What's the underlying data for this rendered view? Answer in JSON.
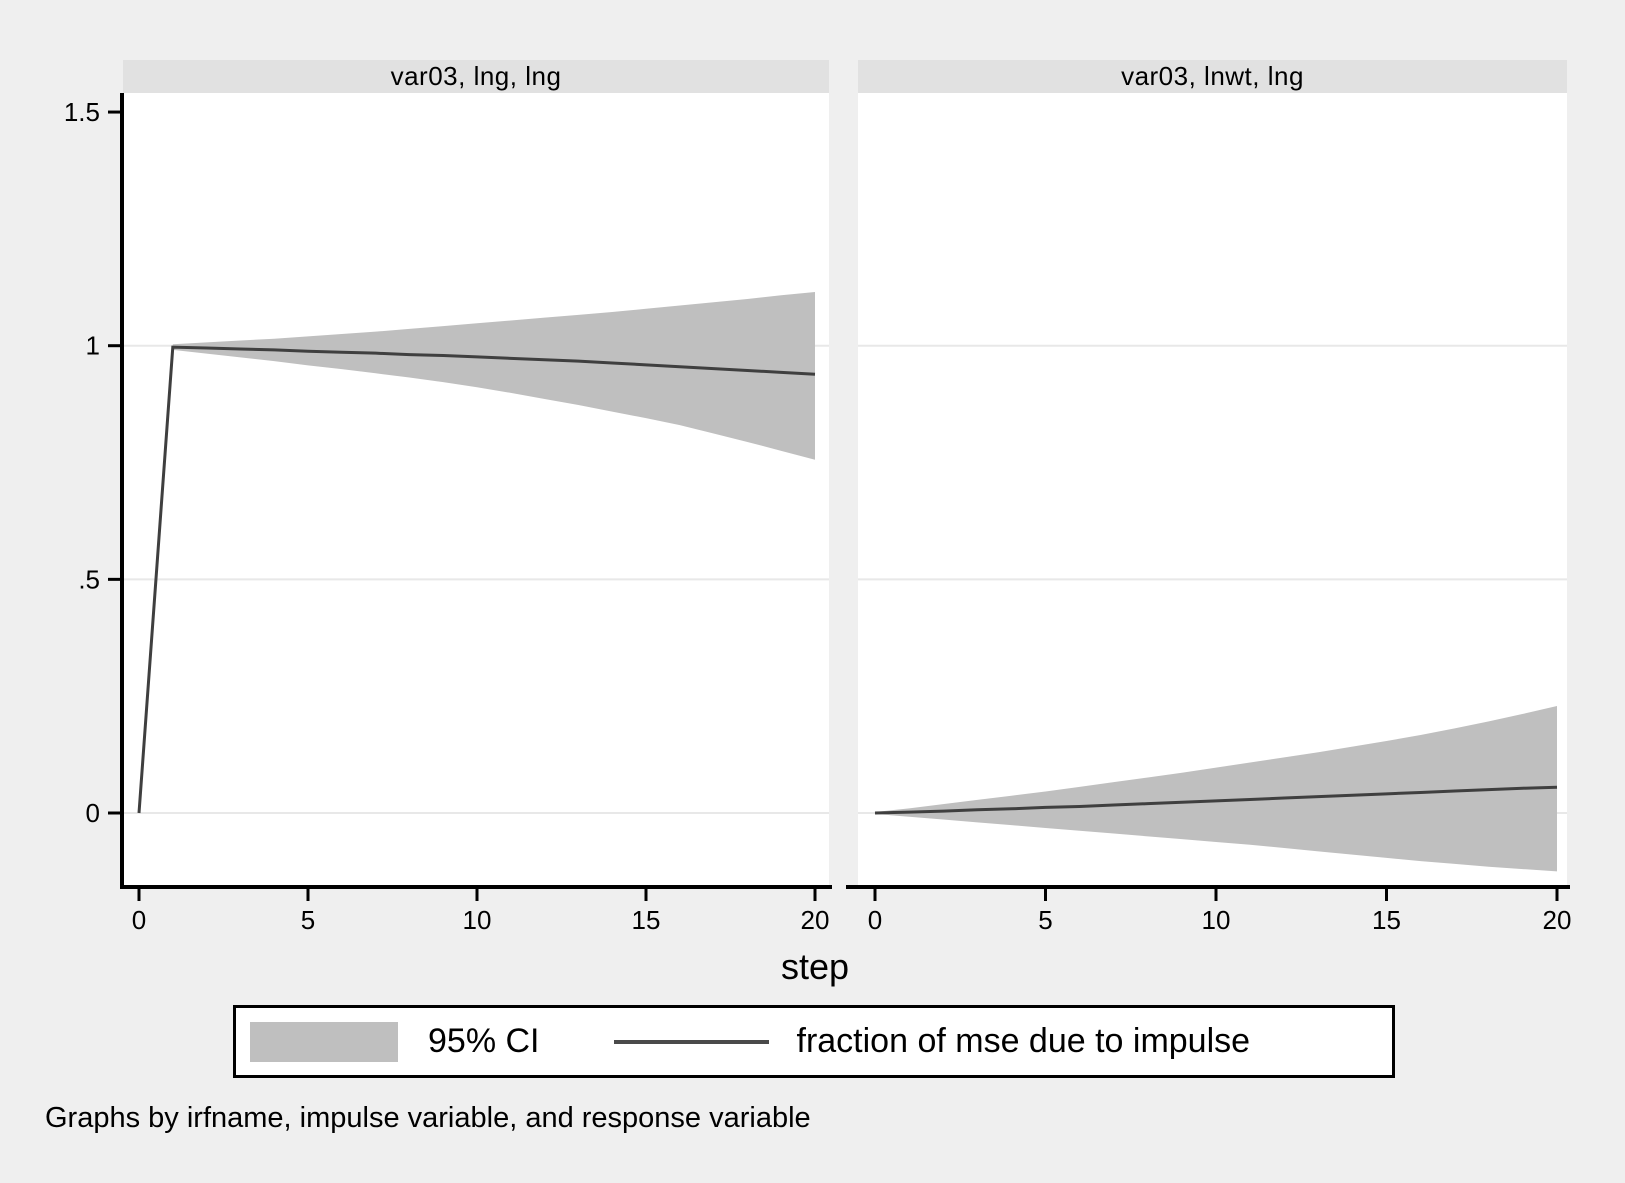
{
  "figure": {
    "panels": [
      {
        "title": "var03, lng, lng"
      },
      {
        "title": "var03, lnwt, lng"
      }
    ],
    "xlabel": "step",
    "legend": {
      "ci_label": "95% CI",
      "line_label": "fraction of mse due to impulse"
    },
    "note": "Graphs by irfname, impulse variable, and response variable"
  },
  "colors": {
    "background": "#efefef",
    "strip_background": "#e1e1e1",
    "plot_background": "#ffffff",
    "gridline": "#e8e8e8",
    "ci_band": "#bfbfbf",
    "line": "#3f3f3f",
    "axis": "#000000",
    "text": "#000000"
  },
  "chart_data": [
    {
      "type": "area",
      "title": "var03, lng, lng",
      "xlabel": "step",
      "x_ticks": [
        0,
        5,
        10,
        15,
        20
      ],
      "x_tick_labels": [
        "0",
        "5",
        "10",
        "15",
        "20"
      ],
      "y_ticks": [
        0,
        0.5,
        1,
        1.5
      ],
      "y_tick_labels": [
        "0",
        ".5",
        "1",
        "1.5"
      ],
      "gridlines": [
        0,
        0.5,
        1
      ],
      "xlim": [
        0,
        20
      ],
      "ylim": [
        -0.16,
        1.54
      ],
      "series": [
        {
          "name": "fraction of mse due to impulse",
          "kind": "line",
          "x": [
            0,
            1,
            2,
            3,
            4,
            5,
            6,
            7,
            8,
            9,
            10,
            11,
            12,
            13,
            14,
            15,
            16,
            17,
            18,
            19,
            20
          ],
          "y": [
            0,
            0.997,
            0.995,
            0.993,
            0.991,
            0.988,
            0.986,
            0.984,
            0.981,
            0.979,
            0.976,
            0.973,
            0.97,
            0.967,
            0.963,
            0.959,
            0.955,
            0.951,
            0.947,
            0.943,
            0.939
          ]
        },
        {
          "name": "95% CI",
          "kind": "band",
          "x": [
            1,
            2,
            3,
            4,
            5,
            6,
            7,
            8,
            9,
            10,
            11,
            12,
            13,
            14,
            15,
            16,
            17,
            18,
            19,
            20
          ],
          "upper": [
            1.003,
            1.007,
            1.011,
            1.015,
            1.02,
            1.025,
            1.03,
            1.036,
            1.042,
            1.048,
            1.054,
            1.06,
            1.066,
            1.072,
            1.079,
            1.086,
            1.093,
            1.1,
            1.108,
            1.115
          ],
          "lower": [
            0.991,
            0.983,
            0.975,
            0.967,
            0.958,
            0.95,
            0.941,
            0.932,
            0.922,
            0.911,
            0.899,
            0.886,
            0.873,
            0.859,
            0.845,
            0.83,
            0.812,
            0.794,
            0.775,
            0.756
          ]
        }
      ]
    },
    {
      "type": "area",
      "title": "var03, lnwt, lng",
      "xlabel": "step",
      "x_ticks": [
        0,
        5,
        10,
        15,
        20
      ],
      "x_tick_labels": [
        "0",
        "5",
        "10",
        "15",
        "20"
      ],
      "y_ticks": [
        0,
        0.5,
        1,
        1.5
      ],
      "y_tick_labels": [
        "0",
        ".5",
        "1",
        "1.5"
      ],
      "gridlines": [
        0,
        0.5,
        1
      ],
      "xlim": [
        0,
        20
      ],
      "ylim": [
        -0.16,
        1.54
      ],
      "series": [
        {
          "name": "fraction of mse due to impulse",
          "kind": "line",
          "x": [
            0,
            1,
            2,
            3,
            4,
            5,
            6,
            7,
            8,
            9,
            10,
            11,
            12,
            13,
            14,
            15,
            16,
            17,
            18,
            19,
            20
          ],
          "y": [
            0.0,
            0.002,
            0.004,
            0.007,
            0.009,
            0.012,
            0.014,
            0.017,
            0.02,
            0.023,
            0.026,
            0.029,
            0.032,
            0.035,
            0.038,
            0.041,
            0.044,
            0.047,
            0.05,
            0.053,
            0.055
          ]
        },
        {
          "name": "95% CI",
          "kind": "band",
          "x": [
            0,
            1,
            2,
            3,
            4,
            5,
            6,
            7,
            8,
            9,
            10,
            11,
            12,
            13,
            14,
            15,
            16,
            17,
            18,
            19,
            20
          ],
          "upper": [
            0.002,
            0.01,
            0.019,
            0.028,
            0.037,
            0.046,
            0.056,
            0.066,
            0.076,
            0.086,
            0.097,
            0.108,
            0.119,
            0.13,
            0.142,
            0.154,
            0.167,
            0.181,
            0.196,
            0.212,
            0.229
          ],
          "lower": [
            -0.002,
            -0.008,
            -0.014,
            -0.02,
            -0.026,
            -0.032,
            -0.038,
            -0.044,
            -0.05,
            -0.056,
            -0.062,
            -0.068,
            -0.075,
            -0.082,
            -0.089,
            -0.096,
            -0.103,
            -0.109,
            -0.115,
            -0.12,
            -0.125
          ]
        }
      ]
    }
  ]
}
